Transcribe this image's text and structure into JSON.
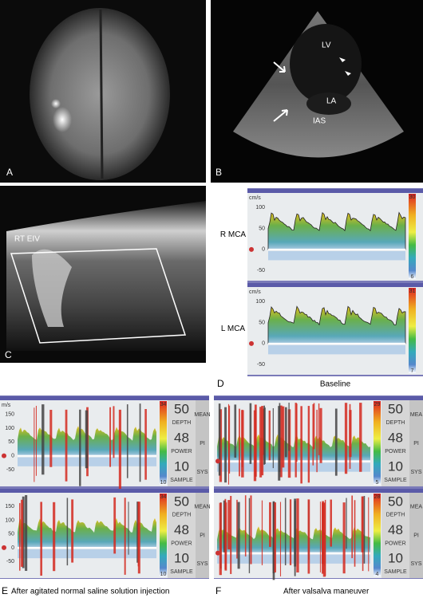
{
  "panels": [
    {
      "letter": "A"
    },
    {
      "letter": "B",
      "labels": [
        "LV",
        "LA",
        "IAS"
      ]
    },
    {
      "letter": "C",
      "labels": [
        "RT EIV"
      ]
    },
    {
      "letter": "D",
      "caption": "Baseline",
      "tracks": [
        {
          "label": "R MCA",
          "unit": "cm/s",
          "yticks": [
            100,
            50,
            0,
            -50
          ],
          "scale_top": 30,
          "scale_bottom": 6
        },
        {
          "label": "L MCA",
          "unit": "cm/s",
          "yticks": [
            100,
            50,
            0,
            -50
          ],
          "scale_top": 31,
          "scale_bottom": 7
        }
      ]
    },
    {
      "letter": "E",
      "caption": "After agitated normal saline solution injection",
      "tracks": [
        {
          "unit": "m/s",
          "yticks": [
            150,
            100,
            50,
            0,
            -50
          ],
          "scale_top": 34,
          "scale_bottom": 10,
          "readouts": [
            {
              "value": 50,
              "name": "DEPTH"
            },
            {
              "value": 48,
              "name": "POWER"
            },
            {
              "value": 10,
              "name": "SAMPLE"
            }
          ],
          "indices": [
            "MEAN",
            "PI",
            "SYS"
          ]
        },
        {
          "yticks": [
            150,
            100,
            50,
            0,
            -50
          ],
          "scale_top": 34,
          "scale_bottom": 10,
          "readouts": [
            {
              "value": 50,
              "name": "DEPTH"
            },
            {
              "value": 48,
              "name": "POWER"
            },
            {
              "value": 10,
              "name": "SAMPLE"
            }
          ],
          "indices": [
            "MEAN",
            "PI",
            "SYS"
          ]
        }
      ]
    },
    {
      "letter": "F",
      "caption": "After valsalva maneuver",
      "tracks": [
        {
          "scale_top": 29,
          "scale_bottom": 5,
          "readouts": [
            {
              "value": 50,
              "name": "DEPTH"
            },
            {
              "value": 48,
              "name": "POWER"
            },
            {
              "value": 10,
              "name": "SAMPLE"
            }
          ],
          "indices": [
            "MEA",
            "PI",
            "SYS"
          ]
        },
        {
          "scale_top": 28,
          "scale_bottom": 4,
          "readouts": [
            {
              "value": 50,
              "name": "DEPTH"
            },
            {
              "value": 48,
              "name": "POWER"
            },
            {
              "value": 10,
              "name": "SAMPLE"
            }
          ],
          "indices": [
            "MEA",
            "PI",
            "SYS"
          ]
        }
      ]
    }
  ]
}
